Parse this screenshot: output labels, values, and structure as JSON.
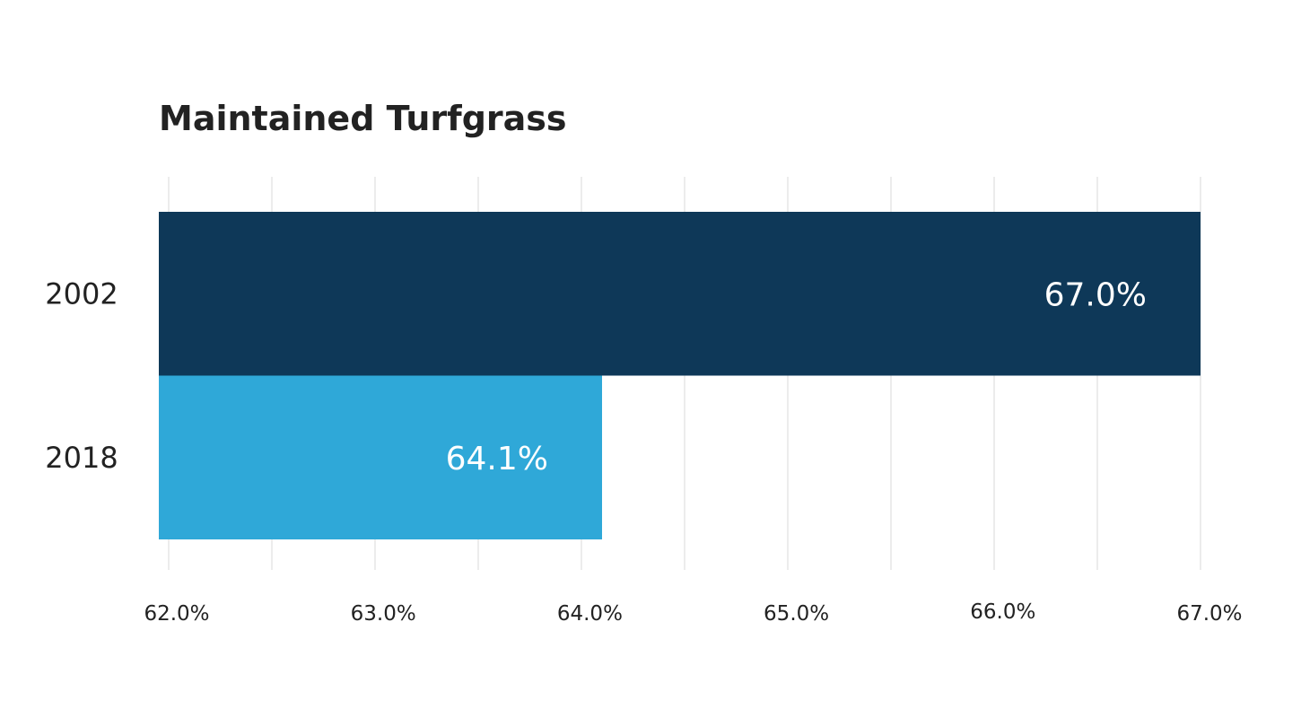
{
  "chart_data": {
    "type": "bar",
    "orientation": "horizontal",
    "title": "Maintained Turfgrass",
    "xlabel": "",
    "ylabel": "",
    "categories": [
      "2002",
      "2018"
    ],
    "series": [
      {
        "values": [
          67.0,
          64.1
        ],
        "colors": [
          "#0e3858",
          "#2fa8d8"
        ],
        "data_labels": [
          "67.0%",
          "64.1%"
        ]
      }
    ],
    "xlim": [
      62.0,
      67.0
    ],
    "x_ticks": [
      62.0,
      63.0,
      64.0,
      65.0,
      66.0,
      67.0
    ],
    "x_tick_labels": [
      "62.0%",
      "63.0%",
      "64.0%",
      "65.0%",
      "66.0%",
      "67.0%"
    ],
    "gridlines": "vertical",
    "gridline_step": 0.5,
    "legend": "none"
  },
  "colors": {
    "text": "#222222",
    "gridline": "#d9d9d9",
    "value_label": "#ffffff"
  }
}
